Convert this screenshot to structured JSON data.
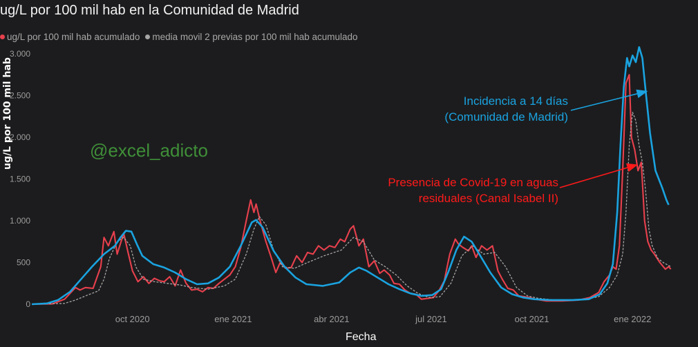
{
  "title": "ug/L por 100 mil hab en la Comunidad de Madrid",
  "watermark": "@excel_adicto",
  "chart_data": {
    "type": "line",
    "ylabel": "ug/L por 100 mil hab",
    "xlabel": "Fecha",
    "ylim": [
      0,
      3000
    ],
    "yticks": [
      0,
      500,
      1000,
      1500,
      2000,
      2500,
      3000
    ],
    "ytick_labels": [
      "0",
      "500",
      "1.000",
      "1.500",
      "2.000",
      "2.500",
      "3.000"
    ],
    "x_ticks": [
      {
        "date": "2020-10-01",
        "label": "oct 2020"
      },
      {
        "date": "2021-01-01",
        "label": "ene 2021"
      },
      {
        "date": "2021-04-01",
        "label": "abr 2021"
      },
      {
        "date": "2021-07-01",
        "label": "jul 2021"
      },
      {
        "date": "2021-10-01",
        "label": "oct 2021"
      },
      {
        "date": "2022-01-01",
        "label": "ene 2022"
      }
    ],
    "xlim": [
      "2020-07-01",
      "2022-02-21"
    ],
    "series": [
      {
        "name": "ug/L por 100 mil hab acumulado",
        "color": "#e8404d",
        "dash": false,
        "points": [
          [
            "2020-07-01",
            0
          ],
          [
            "2020-07-20",
            5
          ],
          [
            "2020-07-31",
            60
          ],
          [
            "2020-08-10",
            200
          ],
          [
            "2020-08-14",
            170
          ],
          [
            "2020-08-19",
            200
          ],
          [
            "2020-08-26",
            190
          ],
          [
            "2020-09-02",
            450
          ],
          [
            "2020-09-05",
            800
          ],
          [
            "2020-09-09",
            700
          ],
          [
            "2020-09-14",
            870
          ],
          [
            "2020-09-17",
            600
          ],
          [
            "2020-09-23",
            850
          ],
          [
            "2020-09-27",
            620
          ],
          [
            "2020-10-01",
            400
          ],
          [
            "2020-10-06",
            270
          ],
          [
            "2020-10-11",
            330
          ],
          [
            "2020-10-16",
            250
          ],
          [
            "2020-10-21",
            310
          ],
          [
            "2020-10-26",
            280
          ],
          [
            "2020-10-30",
            270
          ],
          [
            "2020-11-04",
            330
          ],
          [
            "2020-11-09",
            220
          ],
          [
            "2020-11-14",
            410
          ],
          [
            "2020-11-19",
            250
          ],
          [
            "2020-11-24",
            170
          ],
          [
            "2020-11-29",
            180
          ],
          [
            "2020-12-04",
            150
          ],
          [
            "2020-12-09",
            200
          ],
          [
            "2020-12-14",
            190
          ],
          [
            "2020-12-19",
            250
          ],
          [
            "2020-12-24",
            300
          ],
          [
            "2020-12-29",
            350
          ],
          [
            "2021-01-03",
            450
          ],
          [
            "2021-01-08",
            680
          ],
          [
            "2021-01-13",
            1000
          ],
          [
            "2021-01-17",
            1250
          ],
          [
            "2021-01-20",
            1100
          ],
          [
            "2021-01-22",
            1200
          ],
          [
            "2021-01-26",
            980
          ],
          [
            "2021-01-31",
            750
          ],
          [
            "2021-02-05",
            550
          ],
          [
            "2021-02-09",
            380
          ],
          [
            "2021-02-13",
            500
          ],
          [
            "2021-02-18",
            430
          ],
          [
            "2021-02-23",
            440
          ],
          [
            "2021-02-28",
            580
          ],
          [
            "2021-03-05",
            500
          ],
          [
            "2021-03-10",
            620
          ],
          [
            "2021-03-15",
            600
          ],
          [
            "2021-03-20",
            700
          ],
          [
            "2021-03-25",
            650
          ],
          [
            "2021-03-30",
            700
          ],
          [
            "2021-04-04",
            680
          ],
          [
            "2021-04-09",
            780
          ],
          [
            "2021-04-13",
            750
          ],
          [
            "2021-04-18",
            900
          ],
          [
            "2021-04-21",
            940
          ],
          [
            "2021-04-26",
            700
          ],
          [
            "2021-04-30",
            780
          ],
          [
            "2021-05-05",
            450
          ],
          [
            "2021-05-10",
            520
          ],
          [
            "2021-05-15",
            370
          ],
          [
            "2021-05-19",
            410
          ],
          [
            "2021-05-24",
            350
          ],
          [
            "2021-05-28",
            250
          ],
          [
            "2021-06-02",
            240
          ],
          [
            "2021-06-07",
            170
          ],
          [
            "2021-06-12",
            130
          ],
          [
            "2021-06-17",
            120
          ],
          [
            "2021-06-22",
            60
          ],
          [
            "2021-06-28",
            70
          ],
          [
            "2021-07-03",
            80
          ],
          [
            "2021-07-08",
            160
          ],
          [
            "2021-07-13",
            280
          ],
          [
            "2021-07-18",
            600
          ],
          [
            "2021-07-23",
            780
          ],
          [
            "2021-07-26",
            720
          ],
          [
            "2021-07-30",
            680
          ],
          [
            "2021-08-04",
            640
          ],
          [
            "2021-08-07",
            700
          ],
          [
            "2021-08-11",
            560
          ],
          [
            "2021-08-16",
            700
          ],
          [
            "2021-08-21",
            650
          ],
          [
            "2021-08-26",
            700
          ],
          [
            "2021-08-31",
            400
          ],
          [
            "2021-09-04",
            300
          ],
          [
            "2021-09-09",
            190
          ],
          [
            "2021-09-14",
            170
          ],
          [
            "2021-09-19",
            100
          ],
          [
            "2021-09-24",
            90
          ],
          [
            "2021-09-29",
            80
          ],
          [
            "2021-10-04",
            60
          ],
          [
            "2021-10-14",
            40
          ],
          [
            "2021-10-29",
            40
          ],
          [
            "2021-11-13",
            50
          ],
          [
            "2021-11-23",
            80
          ],
          [
            "2021-12-01",
            140
          ],
          [
            "2021-12-06",
            270
          ],
          [
            "2021-12-11",
            350
          ],
          [
            "2021-12-14",
            450
          ],
          [
            "2021-12-17",
            420
          ],
          [
            "2021-12-20",
            700
          ],
          [
            "2021-12-23",
            1600
          ],
          [
            "2021-12-26",
            2650
          ],
          [
            "2021-12-29",
            2750
          ],
          [
            "2021-12-31",
            2000
          ],
          [
            "2022-01-03",
            1850
          ],
          [
            "2022-01-06",
            1600
          ],
          [
            "2022-01-09",
            1700
          ],
          [
            "2022-01-12",
            1000
          ],
          [
            "2022-01-15",
            750
          ],
          [
            "2022-01-18",
            650
          ],
          [
            "2022-01-21",
            600
          ],
          [
            "2022-01-26",
            500
          ],
          [
            "2022-01-31",
            420
          ],
          [
            "2022-02-03",
            450
          ],
          [
            "2022-02-05",
            420
          ]
        ]
      },
      {
        "name": "media movil 2 previas por 100 mil hab acumulado",
        "color": "#a6a6a6",
        "dash": true,
        "points": [
          [
            "2020-07-01",
            0
          ],
          [
            "2020-07-31",
            10
          ],
          [
            "2020-08-10",
            50
          ],
          [
            "2020-08-21",
            110
          ],
          [
            "2020-08-31",
            160
          ],
          [
            "2020-09-05",
            300
          ],
          [
            "2020-09-10",
            550
          ],
          [
            "2020-09-17",
            750
          ],
          [
            "2020-09-23",
            800
          ],
          [
            "2020-09-29",
            700
          ],
          [
            "2020-10-04",
            450
          ],
          [
            "2020-10-11",
            300
          ],
          [
            "2020-10-21",
            270
          ],
          [
            "2020-11-02",
            250
          ],
          [
            "2020-11-14",
            230
          ],
          [
            "2020-11-24",
            200
          ],
          [
            "2020-12-09",
            180
          ],
          [
            "2020-12-24",
            220
          ],
          [
            "2021-01-03",
            300
          ],
          [
            "2021-01-13",
            600
          ],
          [
            "2021-01-20",
            900
          ],
          [
            "2021-01-25",
            1050
          ],
          [
            "2021-01-31",
            950
          ],
          [
            "2021-02-07",
            650
          ],
          [
            "2021-02-15",
            450
          ],
          [
            "2021-02-26",
            430
          ],
          [
            "2021-03-10",
            500
          ],
          [
            "2021-03-25",
            580
          ],
          [
            "2021-04-10",
            650
          ],
          [
            "2021-04-21",
            800
          ],
          [
            "2021-04-30",
            750
          ],
          [
            "2021-05-10",
            530
          ],
          [
            "2021-05-20",
            450
          ],
          [
            "2021-05-30",
            350
          ],
          [
            "2021-06-09",
            220
          ],
          [
            "2021-06-19",
            130
          ],
          [
            "2021-06-29",
            80
          ],
          [
            "2021-07-09",
            90
          ],
          [
            "2021-07-19",
            250
          ],
          [
            "2021-07-29",
            580
          ],
          [
            "2021-08-08",
            700
          ],
          [
            "2021-08-18",
            600
          ],
          [
            "2021-08-28",
            620
          ],
          [
            "2021-09-07",
            450
          ],
          [
            "2021-09-17",
            200
          ],
          [
            "2021-09-27",
            100
          ],
          [
            "2021-10-07",
            70
          ],
          [
            "2021-10-22",
            50
          ],
          [
            "2021-11-16",
            50
          ],
          [
            "2021-12-01",
            90
          ],
          [
            "2021-12-11",
            200
          ],
          [
            "2021-12-18",
            350
          ],
          [
            "2021-12-23",
            600
          ],
          [
            "2021-12-26",
            1100
          ],
          [
            "2021-12-29",
            1900
          ],
          [
            "2022-01-01",
            2300
          ],
          [
            "2022-01-04",
            2200
          ],
          [
            "2022-01-07",
            1900
          ],
          [
            "2022-01-10",
            1700
          ],
          [
            "2022-01-13",
            1350
          ],
          [
            "2022-01-16",
            900
          ],
          [
            "2022-01-19",
            700
          ],
          [
            "2022-01-24",
            550
          ],
          [
            "2022-01-29",
            500
          ],
          [
            "2022-02-05",
            450
          ]
        ]
      },
      {
        "name": "Incidencia a 14 días (Comunidad de Madrid)",
        "color": "#1aa3e0",
        "dash": false,
        "points": [
          [
            "2020-07-01",
            0
          ],
          [
            "2020-07-15",
            10
          ],
          [
            "2020-07-25",
            50
          ],
          [
            "2020-08-05",
            150
          ],
          [
            "2020-08-15",
            300
          ],
          [
            "2020-08-25",
            450
          ],
          [
            "2020-09-05",
            600
          ],
          [
            "2020-09-15",
            700
          ],
          [
            "2020-09-20",
            800
          ],
          [
            "2020-09-25",
            880
          ],
          [
            "2020-09-30",
            870
          ],
          [
            "2020-10-05",
            720
          ],
          [
            "2020-10-10",
            580
          ],
          [
            "2020-10-20",
            480
          ],
          [
            "2020-10-30",
            440
          ],
          [
            "2020-11-09",
            380
          ],
          [
            "2020-11-19",
            300
          ],
          [
            "2020-11-29",
            240
          ],
          [
            "2020-12-09",
            250
          ],
          [
            "2020-12-19",
            320
          ],
          [
            "2020-12-29",
            450
          ],
          [
            "2021-01-08",
            700
          ],
          [
            "2021-01-18",
            980
          ],
          [
            "2021-01-22",
            1010
          ],
          [
            "2021-01-28",
            920
          ],
          [
            "2021-02-07",
            640
          ],
          [
            "2021-02-17",
            450
          ],
          [
            "2021-02-27",
            320
          ],
          [
            "2021-03-09",
            240
          ],
          [
            "2021-03-24",
            220
          ],
          [
            "2021-04-08",
            260
          ],
          [
            "2021-04-18",
            380
          ],
          [
            "2021-04-26",
            440
          ],
          [
            "2021-05-03",
            400
          ],
          [
            "2021-05-13",
            320
          ],
          [
            "2021-05-23",
            240
          ],
          [
            "2021-06-02",
            180
          ],
          [
            "2021-06-12",
            130
          ],
          [
            "2021-06-22",
            100
          ],
          [
            "2021-07-02",
            110
          ],
          [
            "2021-07-10",
            180
          ],
          [
            "2021-07-17",
            400
          ],
          [
            "2021-07-24",
            650
          ],
          [
            "2021-07-31",
            810
          ],
          [
            "2021-08-07",
            750
          ],
          [
            "2021-08-14",
            600
          ],
          [
            "2021-08-24",
            380
          ],
          [
            "2021-09-03",
            200
          ],
          [
            "2021-09-13",
            120
          ],
          [
            "2021-09-23",
            80
          ],
          [
            "2021-10-03",
            60
          ],
          [
            "2021-10-18",
            50
          ],
          [
            "2021-11-07",
            50
          ],
          [
            "2021-11-22",
            60
          ],
          [
            "2021-12-02",
            120
          ],
          [
            "2021-12-09",
            250
          ],
          [
            "2021-12-14",
            480
          ],
          [
            "2021-12-18",
            1100
          ],
          [
            "2021-12-21",
            1900
          ],
          [
            "2021-12-24",
            2600
          ],
          [
            "2021-12-27",
            2950
          ],
          [
            "2021-12-29",
            2850
          ],
          [
            "2022-01-01",
            2980
          ],
          [
            "2022-01-04",
            2900
          ],
          [
            "2022-01-07",
            3080
          ],
          [
            "2022-01-10",
            2950
          ],
          [
            "2022-01-13",
            2550
          ],
          [
            "2022-01-17",
            2050
          ],
          [
            "2022-01-22",
            1600
          ],
          [
            "2022-01-28",
            1400
          ],
          [
            "2022-02-01",
            1250
          ],
          [
            "2022-02-03",
            1190
          ]
        ]
      }
    ],
    "legend_entries": [
      {
        "label": "ug/L por 100 mil hab acumulado",
        "color": "#e8404d"
      },
      {
        "label": "media movil 2 previas por 100 mil hab acumulado",
        "color": "#a6a6a6"
      }
    ],
    "annotations": [
      {
        "lines": [
          "Incidencia a 14 días",
          "(Comunidad de Madrid)"
        ],
        "color": "#1aa3e0",
        "arrow_to": [
          "2022-01-14",
          2550
        ]
      },
      {
        "lines": [
          "Presencia de Covid-19 en aguas",
          "residuales (Canal Isabel II)"
        ],
        "color": "#ff1a1a",
        "arrow_to": [
          "2022-01-05",
          1670
        ]
      }
    ],
    "grid": false,
    "legend_position": "top-left"
  }
}
